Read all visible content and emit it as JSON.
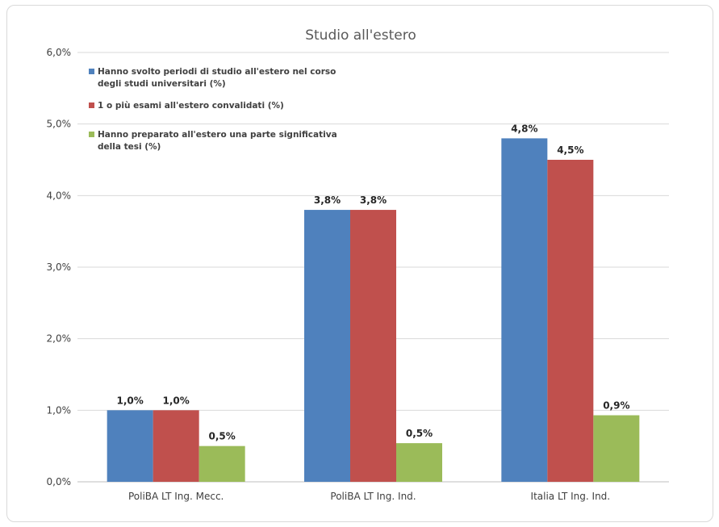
{
  "chart_data": {
    "type": "bar",
    "title": "Studio all'estero",
    "categories": [
      "PoliBA LT Ing. Mecc.",
      "PoliBA LT Ing. Ind.",
      "Italia LT Ing. Ind."
    ],
    "series": [
      {
        "name": "Hanno svolto periodi di studio all'estero nel corso degli studi universitari (%)",
        "name_lines": [
          "Hanno svolto periodi di studio all'estero nel corso",
          "degli studi universitari (%)"
        ],
        "color": "#4f81bd",
        "values": [
          1.0,
          3.8,
          4.8
        ],
        "labels": [
          "1,0%",
          "3,8%",
          "4,8%"
        ]
      },
      {
        "name": "1 o più esami all'estero convalidati (%)",
        "name_lines": [
          "1 o più esami all'estero convalidati (%)"
        ],
        "color": "#c0504d",
        "values": [
          1.0,
          3.8,
          4.5
        ],
        "labels": [
          "1,0%",
          "3,8%",
          "4,5%"
        ]
      },
      {
        "name": "Hanno preparato all'estero una parte significativa della tesi (%)",
        "name_lines": [
          "Hanno preparato all'estero una parte significativa",
          "della tesi (%)"
        ],
        "color": "#9bbb59",
        "values": [
          0.5,
          0.54,
          0.93
        ],
        "labels": [
          "0,5%",
          "0,5%",
          "0,9%"
        ]
      }
    ],
    "ylim": [
      0,
      6
    ],
    "yticks": [
      0,
      1,
      2,
      3,
      4,
      5,
      6
    ],
    "ytick_labels": [
      "0,0%",
      "1,0%",
      "2,0%",
      "3,0%",
      "4,0%",
      "5,0%",
      "6,0%"
    ],
    "grid": true,
    "legend": "top-left"
  }
}
